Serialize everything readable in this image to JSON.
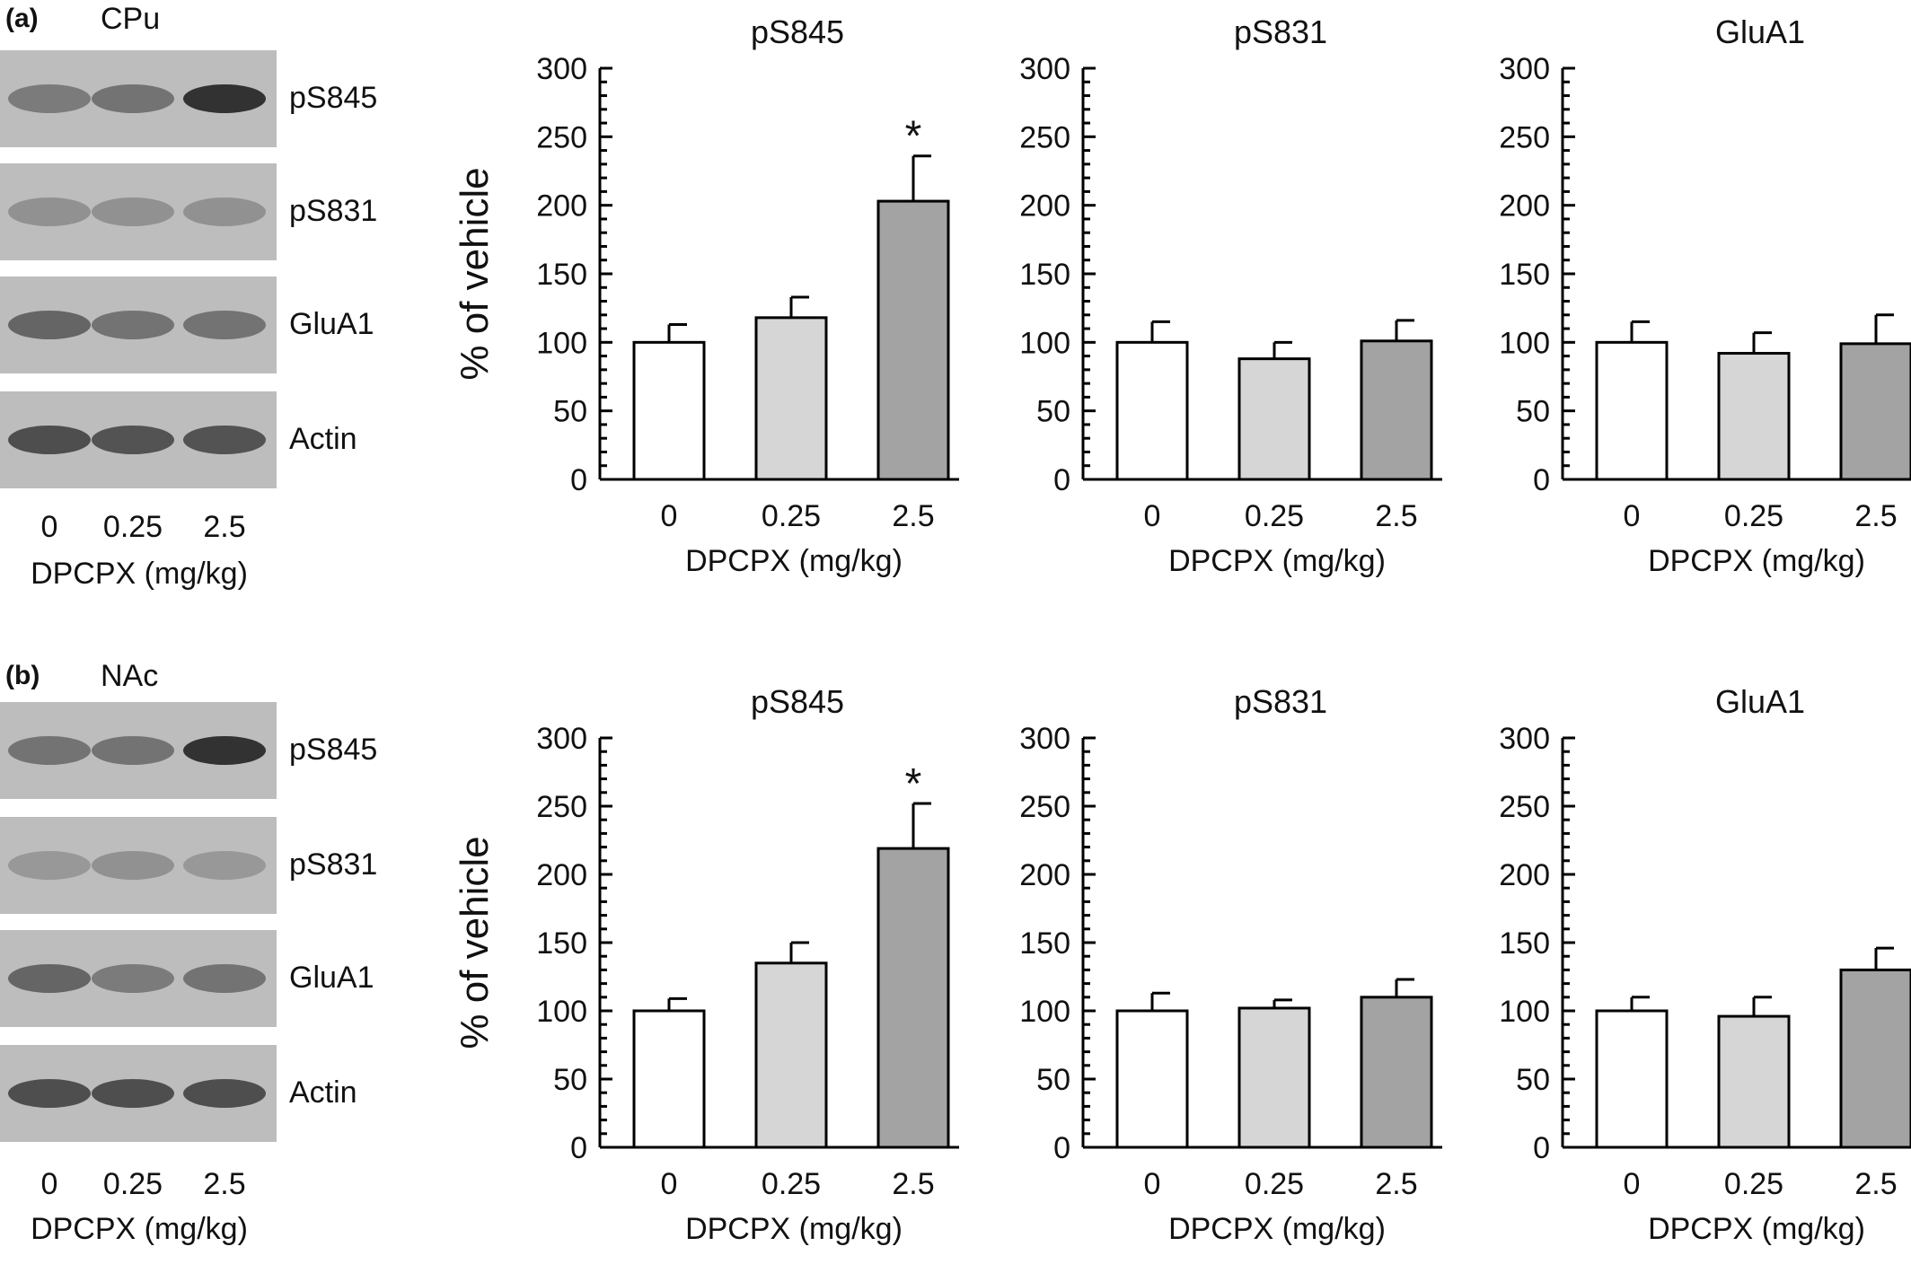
{
  "x_title": "DPCPX (mg/kg)",
  "y_title": "% of vehicle",
  "bar_colors": [
    "#ffffff",
    "#d6d6d6",
    "#a3a3a3"
  ],
  "panels": [
    {
      "letter": "(a)",
      "region": "CPu",
      "blot_labels": [
        "pS845",
        "pS831",
        "GluA1",
        "Actin"
      ],
      "lane_labels": [
        "0",
        "0.25",
        "2.5"
      ],
      "lane_intensity": [
        [
          0.45,
          0.5,
          0.95
        ],
        [
          0.3,
          0.3,
          0.3
        ],
        [
          0.6,
          0.5,
          0.5
        ],
        [
          0.75,
          0.72,
          0.72
        ]
      ]
    },
    {
      "letter": "(b)",
      "region": "NAc",
      "blot_labels": [
        "pS845",
        "pS831",
        "GluA1",
        "Actin"
      ],
      "lane_labels": [
        "0",
        "0.25",
        "2.5"
      ],
      "lane_intensity": [
        [
          0.5,
          0.5,
          0.95
        ],
        [
          0.25,
          0.3,
          0.25
        ],
        [
          0.6,
          0.45,
          0.5
        ],
        [
          0.75,
          0.75,
          0.75
        ]
      ]
    }
  ],
  "chart_data": [
    {
      "type": "bar",
      "panel": "a",
      "title": "pS845",
      "categories": [
        "0",
        "0.25",
        "2.5"
      ],
      "values": [
        100,
        118,
        203
      ],
      "errors": [
        13,
        15,
        33
      ],
      "significant": [
        "",
        "",
        "*"
      ],
      "xlabel": "DPCPX (mg/kg)",
      "ylabel": "% of vehicle",
      "ylim": [
        0,
        300
      ],
      "yticks": [
        0,
        50,
        100,
        150,
        200,
        250,
        300
      ]
    },
    {
      "type": "bar",
      "panel": "a",
      "title": "pS831",
      "categories": [
        "0",
        "0.25",
        "2.5"
      ],
      "values": [
        100,
        88,
        101
      ],
      "errors": [
        15,
        12,
        15
      ],
      "significant": [
        "",
        "",
        ""
      ],
      "xlabel": "DPCPX (mg/kg)",
      "ylabel": "",
      "ylim": [
        0,
        300
      ],
      "yticks": [
        0,
        50,
        100,
        150,
        200,
        250,
        300
      ]
    },
    {
      "type": "bar",
      "panel": "a",
      "title": "GluA1",
      "categories": [
        "0",
        "0.25",
        "2.5"
      ],
      "values": [
        100,
        92,
        99
      ],
      "errors": [
        15,
        15,
        21
      ],
      "significant": [
        "",
        "",
        ""
      ],
      "xlabel": "DPCPX (mg/kg)",
      "ylabel": "",
      "ylim": [
        0,
        300
      ],
      "yticks": [
        0,
        50,
        100,
        150,
        200,
        250,
        300
      ]
    },
    {
      "type": "bar",
      "panel": "b",
      "title": "pS845",
      "categories": [
        "0",
        "0.25",
        "2.5"
      ],
      "values": [
        100,
        135,
        219
      ],
      "errors": [
        9,
        15,
        33
      ],
      "significant": [
        "",
        "",
        "*"
      ],
      "xlabel": "DPCPX (mg/kg)",
      "ylabel": "% of vehicle",
      "ylim": [
        0,
        300
      ],
      "yticks": [
        0,
        50,
        100,
        150,
        200,
        250,
        300
      ]
    },
    {
      "type": "bar",
      "panel": "b",
      "title": "pS831",
      "categories": [
        "0",
        "0.25",
        "2.5"
      ],
      "values": [
        100,
        102,
        110
      ],
      "errors": [
        13,
        6,
        13
      ],
      "significant": [
        "",
        "",
        ""
      ],
      "xlabel": "DPCPX (mg/kg)",
      "ylabel": "",
      "ylim": [
        0,
        300
      ],
      "yticks": [
        0,
        50,
        100,
        150,
        200,
        250,
        300
      ]
    },
    {
      "type": "bar",
      "panel": "b",
      "title": "GluA1",
      "categories": [
        "0",
        "0.25",
        "2.5"
      ],
      "values": [
        100,
        96,
        130
      ],
      "errors": [
        10,
        14,
        16
      ],
      "significant": [
        "",
        "",
        ""
      ],
      "xlabel": "DPCPX (mg/kg)",
      "ylabel": "",
      "ylim": [
        0,
        300
      ],
      "yticks": [
        0,
        50,
        100,
        150,
        200,
        250,
        300
      ]
    }
  ]
}
